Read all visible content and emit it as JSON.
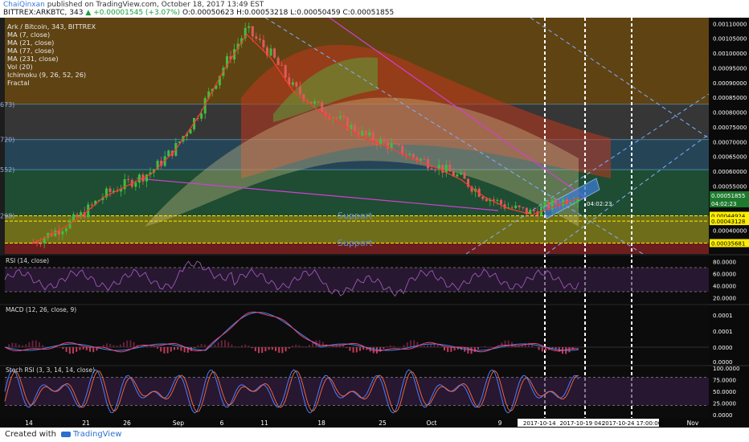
{
  "header": {
    "author": "ChaiQinxan",
    "published": "published on TradingView.com, October 18, 2017 13:49 EST",
    "ticker": "BITTREX:ARKBTC, 343",
    "change": "▲ +0.00001545 (+3.07%)",
    "ohlc": "O:0.00050623 H:0.00053218 L:0.00050459 C:0.00051855"
  },
  "legend": {
    "title": "Ark / Bitcoin, 343, BITTREX",
    "items": [
      "MA (7, close)",
      "MA (21, close)",
      "MA (77, close)",
      "MA (231, close)",
      "Vol (20)",
      "Ichimoku (9, 26, 52, 26)",
      "Fractal"
    ]
  },
  "pane_titles": {
    "rsi": "RSI (14, close)",
    "macd": "MACD (12, 26, close, 9)",
    "stoch": "Stoch RSI (3, 3, 14, 14, close)"
  },
  "left_labels": [
    "673)",
    "720)",
    "552)",
    "298)"
  ],
  "zone_labels": [
    "Support",
    "Support"
  ],
  "price_axis": {
    "ticks": [
      "0.00110000",
      "0.00105000",
      "0.00100000",
      "0.00095000",
      "0.00090000",
      "0.00085000",
      "0.00080000",
      "0.00075000",
      "0.00070000",
      "0.00065000",
      "0.00060000",
      "0.00055000",
      "0.00045000",
      "0.00040000"
    ],
    "tag_price": "0.00051855",
    "tag_time": "04:02:23",
    "tag_support1": "0.00044924",
    "tag_support2": "0.00043128",
    "tag_support3": "0.00035681"
  },
  "rsi_axis": [
    "80.0000",
    "60.0000",
    "40.0000",
    "20.0000"
  ],
  "macd_axis": [
    "0.0001",
    "0.0001",
    "0.0000",
    "0.0000"
  ],
  "stoch_axis": [
    "100.0000",
    "75.0000",
    "50.0000",
    "25.0000",
    "0.0000"
  ],
  "time_axis": {
    "ticks": [
      "14",
      "21",
      "26",
      "Sep",
      "6",
      "11",
      "18",
      "25",
      "Oct",
      "9",
      "Nov"
    ],
    "tags": [
      "2017-10-14 10:",
      "2017-10-19 04:26",
      "2017-10-24 17:00:00"
    ]
  },
  "footer": {
    "created": "Created with",
    "brand": "TradingView"
  },
  "colors": {
    "up": "#3fbf3f",
    "down": "#e05a5a",
    "ma7": "#ff3b30",
    "rsi": "#9b59b6",
    "macd": "#3b8fe8",
    "signal": "#ff4081",
    "stoch_k": "#4f7bff",
    "stoch_d": "#ff6a3d",
    "support_line": "#ffee00",
    "trend": "#d23fd2"
  },
  "chart_data": {
    "type": "candlestick",
    "ylim": [
      0.00032,
      0.00112
    ],
    "support_levels": [
      0.00044924,
      0.00043128,
      0.00035681
    ],
    "resistance_levels": [
      0.00082673,
      0.0007072,
      0.00060552
    ],
    "last_close": 0.00051855,
    "close_path": [
      0.00036,
      0.0004,
      0.00045,
      0.00052,
      0.00056,
      0.0006,
      0.00068,
      0.0008,
      0.00095,
      0.00108,
      0.001,
      0.00088,
      0.00082,
      0.00077,
      0.00072,
      0.00069,
      0.00065,
      0.00062,
      0.00058,
      0.00052,
      0.00048,
      0.00046,
      0.00049,
      0.00051855
    ],
    "rsi": {
      "range": [
        20,
        80
      ],
      "last": 55
    },
    "macd": {
      "last": 0.0
    },
    "stoch_rsi": {
      "range": [
        0,
        100
      ],
      "last": 95
    }
  }
}
